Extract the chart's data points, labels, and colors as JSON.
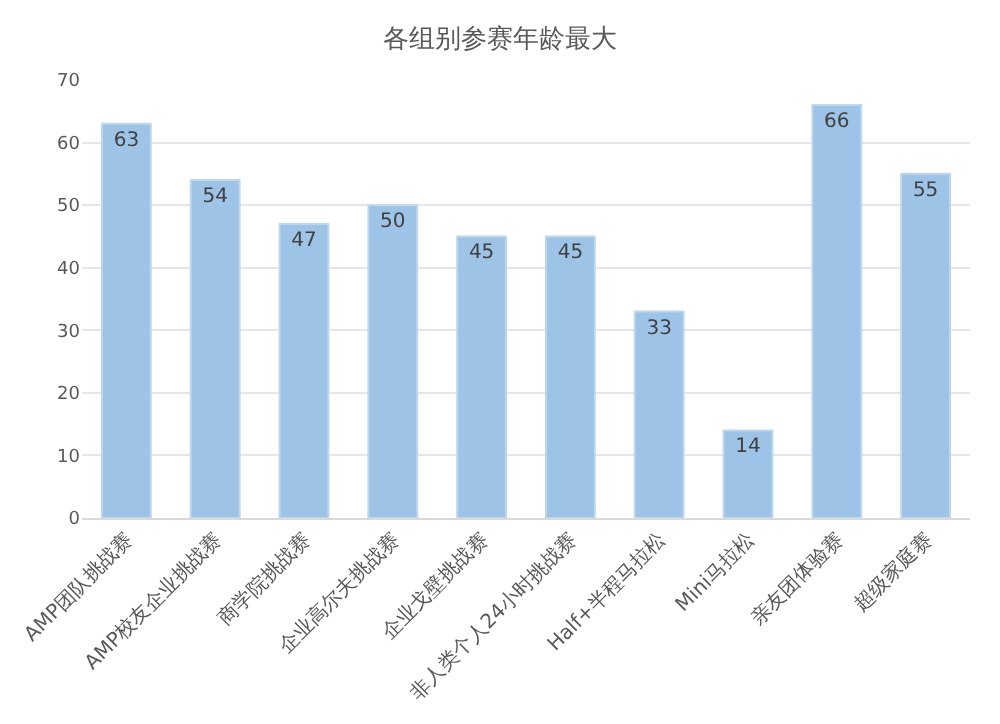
{
  "chart_data": {
    "type": "bar",
    "title": "各组别参赛年龄最大",
    "categories": [
      "AMP团队挑战赛",
      "AMP校友企业挑战赛",
      "商学院挑战赛",
      "企业高尔夫挑战赛",
      "企业戈壁挑战赛",
      "非人类个人24小时挑战赛",
      "Half+半程马拉松",
      "Mini马拉松",
      "亲友团体验赛",
      "超级家庭赛"
    ],
    "values": [
      63,
      54,
      47,
      50,
      45,
      45,
      33,
      14,
      66,
      55
    ],
    "color": "#9dc3e6",
    "ylim": [
      0,
      70
    ],
    "yticks": [
      0,
      10,
      20,
      30,
      40,
      50,
      60,
      70
    ],
    "grid": "y",
    "data_labels": true
  }
}
